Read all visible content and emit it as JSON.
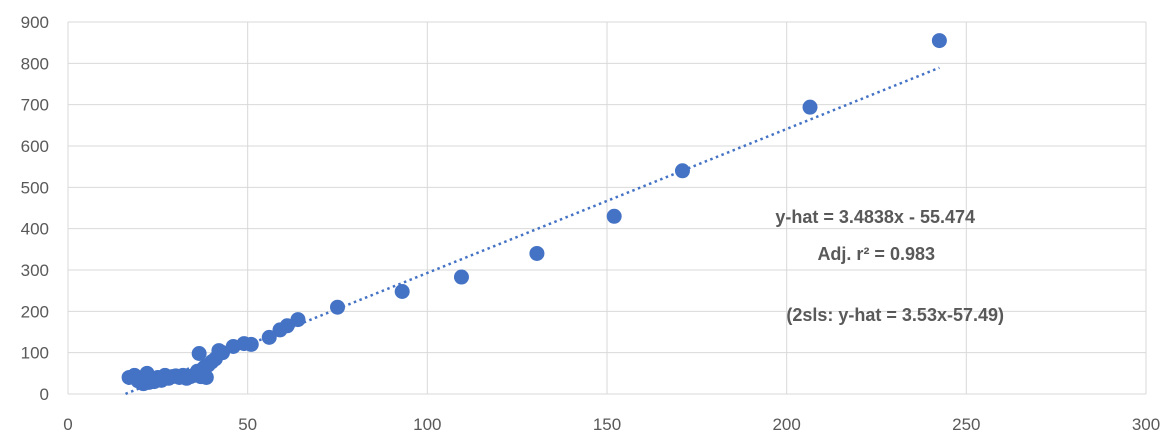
{
  "chart_data": {
    "type": "scatter",
    "title": "",
    "xlabel": "",
    "ylabel": "",
    "xlim": [
      0,
      300
    ],
    "ylim": [
      0,
      900
    ],
    "x_ticks": [
      0,
      50,
      100,
      150,
      200,
      250,
      300
    ],
    "y_ticks": [
      0,
      100,
      200,
      300,
      400,
      500,
      600,
      700,
      800,
      900
    ],
    "grid": true,
    "legend": "none",
    "colors": {
      "points": "#4472C4",
      "trendline": "#4472C4",
      "grid": "#d9d9d9",
      "text": "#595959"
    },
    "series": [
      {
        "x": [
          17,
          18.5,
          19.5,
          20,
          21,
          21.5,
          22,
          22.5,
          23,
          24,
          25,
          26,
          27,
          28,
          29,
          30,
          31,
          32,
          33,
          34,
          35,
          35.5,
          36,
          36.5,
          37,
          37.5,
          38,
          38.5,
          39,
          40,
          41,
          42,
          43,
          46,
          49,
          51,
          56,
          59,
          61,
          64,
          75,
          93,
          109.5,
          130.5,
          152,
          171,
          206.5,
          242.5
        ],
        "y": [
          40,
          45,
          32,
          38,
          25,
          42,
          50,
          28,
          35,
          30,
          40,
          33,
          45,
          38,
          42,
          44,
          40,
          45,
          38,
          42,
          45,
          48,
          55,
          98,
          42,
          60,
          65,
          40,
          70,
          78,
          85,
          105,
          100,
          115,
          122,
          120,
          137,
          155,
          165,
          180,
          210,
          248,
          283,
          340,
          430,
          540,
          694,
          855
        ]
      }
    ],
    "trendline": {
      "slope": 3.4838,
      "intercept": -55.474,
      "x_range": [
        16,
        242.5
      ],
      "style": "dotted"
    },
    "annotations": [
      "y-hat = 3.4838x - 55.474",
      "Adj. r² = 0.983",
      "(2sls: y-hat = 3.53x-57.49)"
    ]
  }
}
